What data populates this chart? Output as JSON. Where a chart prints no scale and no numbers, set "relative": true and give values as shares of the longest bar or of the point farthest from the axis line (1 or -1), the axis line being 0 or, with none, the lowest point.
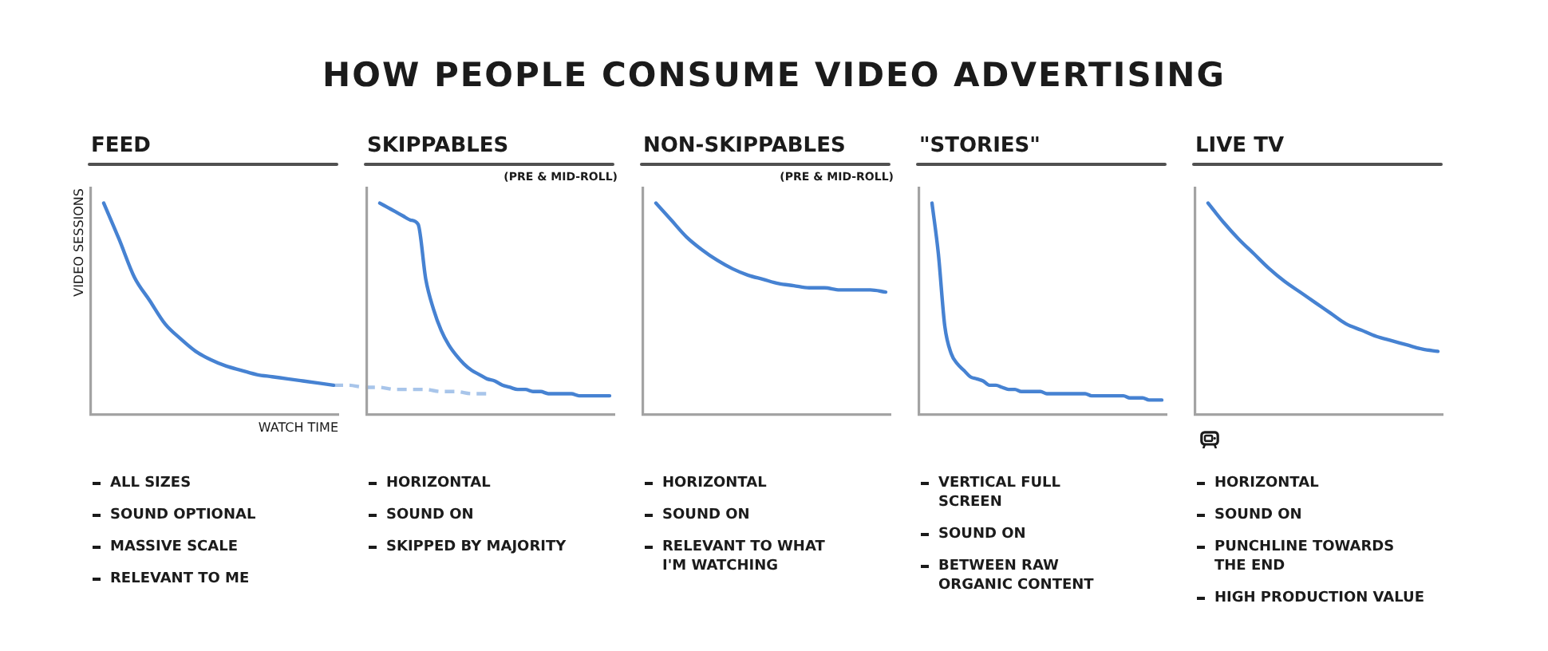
{
  "chart_data": [
    {
      "type": "other",
      "title": "HOW PEOPLE CONSUME VIDEO ADVERTISING"
    },
    {
      "type": "line",
      "title": "FEED",
      "xlabel": "WATCH TIME",
      "ylabel": "VIDEO SESSIONS",
      "relative": true,
      "tick_labels": false,
      "categories": [
        null,
        null,
        null,
        null,
        null,
        null,
        null,
        null,
        null,
        null,
        null,
        null,
        null,
        null,
        null,
        null,
        null,
        null,
        null,
        null,
        null,
        null,
        null,
        null,
        null,
        null
      ],
      "series": [
        {
          "color": "#4682d2",
          "line_style": "solid",
          "values": [
            1.0,
            0.83,
            0.65,
            0.54,
            0.43,
            0.36,
            0.3,
            0.26,
            0.23,
            0.21,
            0.19,
            0.18,
            0.17,
            0.16,
            0.15,
            0.14,
            null,
            null,
            null,
            null,
            null,
            null,
            null,
            null,
            null,
            null
          ]
        },
        {
          "color": "#a8c5ea",
          "line_style": "dashed",
          "values": [
            null,
            null,
            null,
            null,
            null,
            null,
            null,
            null,
            null,
            null,
            null,
            null,
            null,
            null,
            null,
            0.14,
            0.14,
            0.13,
            0.13,
            0.12,
            0.12,
            0.12,
            0.11,
            0.11,
            0.1,
            0.1
          ]
        }
      ],
      "annotations": [
        "ALL SIZES",
        "SOUND OPTIONAL",
        "MASSIVE SCALE",
        "RELEVANT TO ME"
      ]
    },
    {
      "type": "line",
      "title": "SKIPPABLES",
      "subtitle": "(PRE & MID-ROLL)",
      "relative": true,
      "tick_labels": false,
      "categories": [
        null,
        null,
        null,
        null,
        null,
        null,
        null,
        null,
        null,
        null,
        null,
        null,
        null,
        null,
        null,
        null,
        null,
        null,
        null,
        null,
        null,
        null,
        null,
        null,
        null,
        null,
        null,
        null,
        null,
        null,
        null
      ],
      "series": [
        {
          "color": "#4682d2",
          "line_style": "solid",
          "values": [
            1.0,
            0.98,
            0.96,
            0.94,
            0.92,
            0.9,
            0.64,
            0.5,
            0.4,
            0.33,
            0.28,
            0.24,
            0.21,
            0.19,
            0.17,
            0.16,
            0.14,
            0.13,
            0.12,
            0.12,
            0.11,
            0.11,
            0.1,
            0.1,
            0.1,
            0.1,
            0.09,
            0.09,
            0.09,
            0.09,
            0.09
          ]
        }
      ],
      "annotations": [
        "HORIZONTAL",
        "SOUND ON",
        "SKIPPED BY MAJORITY"
      ]
    },
    {
      "type": "line",
      "title": "NON-SKIPPABLES",
      "subtitle": "(PRE & MID-ROLL)",
      "relative": true,
      "tick_labels": false,
      "categories": [
        null,
        null,
        null,
        null,
        null,
        null,
        null,
        null,
        null,
        null,
        null,
        null,
        null,
        null,
        null,
        null
      ],
      "series": [
        {
          "color": "#4682d2",
          "line_style": "solid",
          "values": [
            1.0,
            0.92,
            0.84,
            0.78,
            0.73,
            0.69,
            0.66,
            0.64,
            0.62,
            0.61,
            0.6,
            0.6,
            0.59,
            0.59,
            0.59,
            0.58
          ]
        }
      ],
      "annotations": [
        "HORIZONTAL",
        "SOUND ON",
        "RELEVANT TO WHAT I'M WATCHING"
      ]
    },
    {
      "type": "line",
      "title": "\"STORIES\"",
      "relative": true,
      "tick_labels": false,
      "categories": [
        null,
        null,
        null,
        null,
        null,
        null,
        null,
        null,
        null,
        null,
        null,
        null,
        null,
        null,
        null,
        null,
        null,
        null,
        null,
        null,
        null,
        null,
        null,
        null,
        null,
        null,
        null,
        null,
        null,
        null,
        null,
        null,
        null,
        null,
        null,
        null,
        null
      ],
      "series": [
        {
          "color": "#4682d2",
          "line_style": "solid",
          "values": [
            1.0,
            0.76,
            0.42,
            0.29,
            0.24,
            0.21,
            0.18,
            0.17,
            0.16,
            0.14,
            0.14,
            0.13,
            0.12,
            0.12,
            0.11,
            0.11,
            0.11,
            0.11,
            0.1,
            0.1,
            0.1,
            0.1,
            0.1,
            0.1,
            0.1,
            0.09,
            0.09,
            0.09,
            0.09,
            0.09,
            0.09,
            0.08,
            0.08,
            0.08,
            0.07,
            0.07,
            0.07
          ]
        }
      ],
      "annotations": [
        "VERTICAL FULL SCREEN",
        "SOUND ON",
        "BETWEEN RAW ORGANIC CONTENT"
      ]
    },
    {
      "type": "line",
      "title": "LIVE TV",
      "relative": true,
      "tick_labels": false,
      "categories": [
        null,
        null,
        null,
        null,
        null,
        null,
        null,
        null,
        null,
        null,
        null,
        null,
        null,
        null,
        null,
        null
      ],
      "series": [
        {
          "color": "#4682d2",
          "line_style": "solid",
          "values": [
            1.0,
            0.91,
            0.83,
            0.76,
            0.69,
            0.63,
            0.58,
            0.53,
            0.48,
            0.43,
            0.4,
            0.37,
            0.35,
            0.33,
            0.31,
            0.3
          ]
        }
      ],
      "annotations": [
        "HORIZONTAL",
        "SOUND ON",
        "PUNCHLINE TOWARDS THE END",
        "HIGH PRODUCTION VALUE"
      ]
    }
  ]
}
